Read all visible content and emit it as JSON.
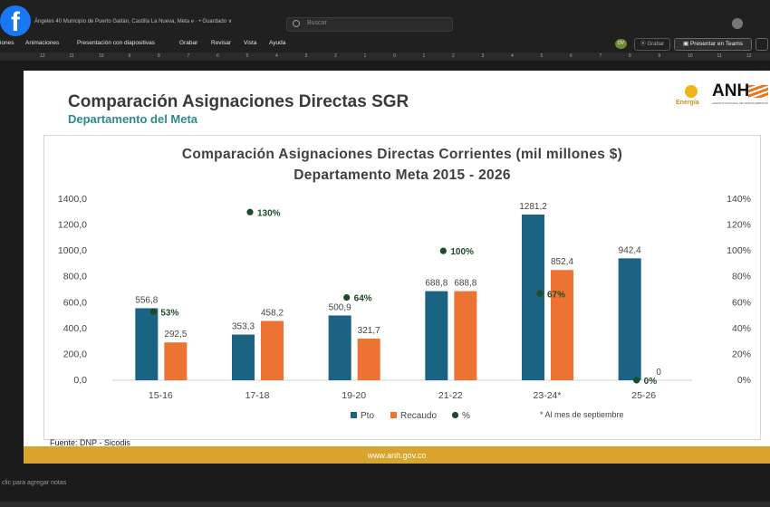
{
  "window": {
    "doc_title": "Ángeles 40 Municipio de Puerto Gaitán, Castilla La Nueva, Meta  ℯ ·  • Guardado ∨",
    "search_placeholder": "Buscar"
  },
  "menu": {
    "items": [
      "iones",
      "Animaciones",
      "Presentación con diapositivas",
      "Grabar",
      "Revisar",
      "Vista",
      "Ayuda"
    ],
    "user_initials": "DV",
    "record_label": "⦿ Grabar",
    "teams_label": "▣ Presentar en Teams"
  },
  "ruler": {
    "ticks": [
      "12",
      "11",
      "10",
      "9",
      "8",
      "7",
      "6",
      "5",
      "4",
      "3",
      "2",
      "1",
      "0",
      "1",
      "2",
      "3",
      "4",
      "5",
      "6",
      "7",
      "8",
      "9",
      "10",
      "11",
      "12"
    ]
  },
  "slide": {
    "title": "Comparación Asignaciones Directas SGR",
    "subtitle": "Departamento del Meta",
    "logo_text": "ANH",
    "logo_caption": "AGENCIA NACIONAL DE HIDROCARBUROS",
    "energy_label": "Energía",
    "source": "Fuente: DNP - Sicodis",
    "footer_url": "www.anh.gov.co"
  },
  "notes": {
    "text": "clic para agregar notas"
  },
  "colors": {
    "pto": "#1a6382",
    "recaudo": "#ec7331",
    "pct": "#1e4a2b",
    "footer": "#d9a42b",
    "accent": "#2e8b8a"
  },
  "chart_data": {
    "type": "bar",
    "title": "Comparación Asignaciones Directas Corrientes (mil millones $)",
    "subtitle": "Departamento Meta 2015 - 2026",
    "categories": [
      "15-16",
      "17-18",
      "19-20",
      "21-22",
      "23-24*",
      "25-26"
    ],
    "series": [
      {
        "name": "Pto",
        "values": [
          556.8,
          353.3,
          500.9,
          688.8,
          1281.2,
          942.4
        ],
        "labels": [
          "556,8",
          "353,3",
          "500,9",
          "688,8",
          "1281,2",
          "942,4"
        ]
      },
      {
        "name": "Recaudo",
        "values": [
          292.5,
          458.2,
          321.7,
          688.8,
          852.4,
          0
        ],
        "labels": [
          "292,5",
          "458,2",
          "321,7",
          "688,8",
          "852,4",
          "0"
        ]
      },
      {
        "name": "%",
        "axis": "right",
        "values": [
          53,
          130,
          64,
          100,
          67,
          0
        ],
        "labels": [
          "53%",
          "130%",
          "64%",
          "100%",
          "67%",
          "0%"
        ]
      }
    ],
    "y_left": {
      "ticks": [
        "0,0",
        "200,0",
        "400,0",
        "600,0",
        "800,0",
        "1000,0",
        "1200,0",
        "1400,0"
      ],
      "range": [
        0,
        1400
      ]
    },
    "y_right": {
      "ticks": [
        "0%",
        "20%",
        "40%",
        "60%",
        "80%",
        "100%",
        "120%",
        "140%"
      ],
      "range": [
        0,
        140
      ]
    },
    "note": "* Al mes de septiembre",
    "legend": [
      "Pto",
      "Recaudo",
      "%"
    ],
    "legend_position": "bottom",
    "grid": false
  }
}
